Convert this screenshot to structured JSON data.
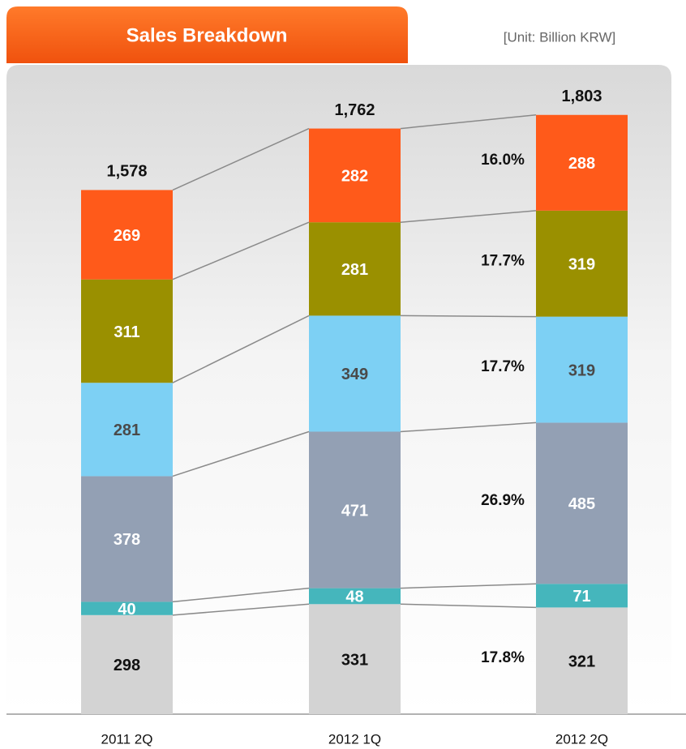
{
  "chart_data": {
    "type": "stacked-bar",
    "title": "Sales Breakdown",
    "unit": "[Unit: Billion KRW]",
    "categories": [
      "2011 2Q",
      "2012 1Q",
      "2012 2Q"
    ],
    "totals": [
      1578,
      1762,
      1803
    ],
    "total_labels": [
      "1,578",
      "1,762",
      "1,803"
    ],
    "series": [
      {
        "color": "#d3d3d3",
        "label_color": "#111111",
        "values": [
          298,
          331,
          321
        ],
        "annotation": "17.8%"
      },
      {
        "color": "#45b6bc",
        "label_color": "#ffffff",
        "values": [
          40,
          48,
          71
        ]
      },
      {
        "color": "#93a0b4",
        "label_color": "#ffffff",
        "values": [
          378,
          471,
          485
        ],
        "annotation": "26.9%"
      },
      {
        "color": "#7dd0f4",
        "label_color": "#4a4a4a",
        "values": [
          281,
          349,
          319
        ],
        "annotation": "17.7%"
      },
      {
        "color": "#9a9000",
        "label_color": "#ffffff",
        "values": [
          311,
          281,
          319
        ],
        "annotation": "17.7%"
      },
      {
        "color": "#ff5a1a",
        "label_color": "#ffffff",
        "values": [
          269,
          282,
          288
        ],
        "annotation": "16.0%"
      }
    ]
  }
}
